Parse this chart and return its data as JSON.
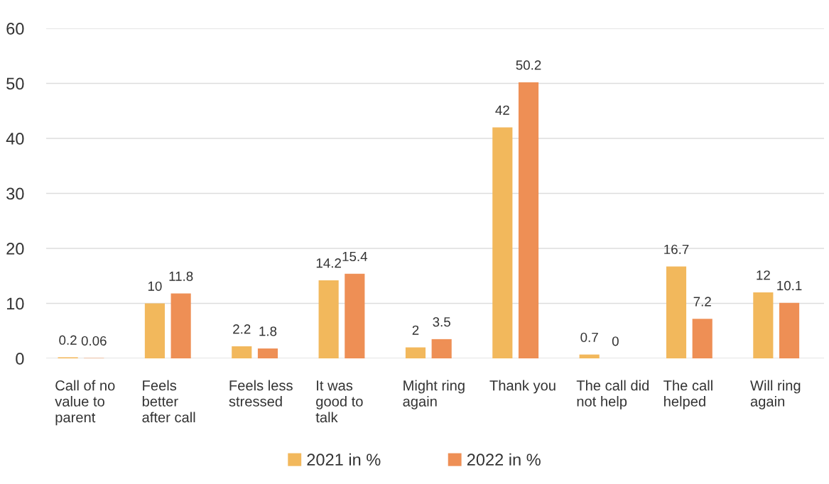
{
  "chart_data": {
    "type": "bar",
    "categories": [
      "Call of no\nvalue to\nparent",
      "Feels\nbetter\nafter call",
      "Feels less\nstressed",
      "It was\ngood to\ntalk",
      "Might ring\nagain",
      "Thank you",
      "The call did\nnot help",
      "The call\nhelped",
      "Will ring\nagain"
    ],
    "series": [
      {
        "name": "2021 in %",
        "color": "#f2b85c",
        "values": [
          0.2,
          10,
          2.2,
          14.2,
          2,
          42,
          0.7,
          16.7,
          12
        ]
      },
      {
        "name": "2022 in %",
        "color": "#ee8f55",
        "values": [
          0.06,
          11.8,
          1.8,
          15.4,
          3.5,
          50.2,
          0,
          7.2,
          10.1
        ]
      }
    ],
    "ylim": [
      0,
      60
    ],
    "yticks": [
      0,
      10,
      20,
      30,
      40,
      50,
      60
    ],
    "grid": "y",
    "legend": "bottom",
    "data_labels": true
  }
}
